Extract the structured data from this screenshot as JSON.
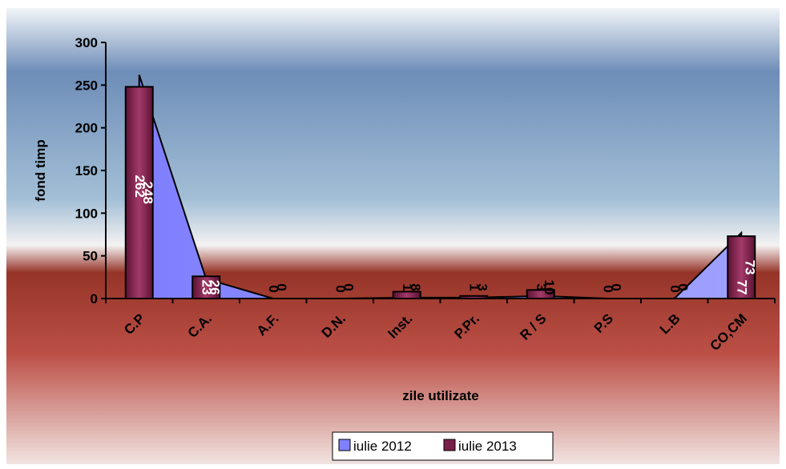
{
  "chart_data": {
    "type": "bar",
    "categories": [
      "C.P",
      "C.A.",
      "A.F.",
      "D.N.",
      "Inst.",
      "P.Pr.",
      "R / S",
      "P.S",
      "L.B",
      "CO,CM"
    ],
    "series": [
      {
        "name": "iulie 2012",
        "values": [
          262,
          23,
          0,
          0,
          1,
          1,
          3,
          0,
          0,
          77
        ],
        "color": "#8080ff"
      },
      {
        "name": "iulie 2013",
        "values": [
          248,
          26,
          0,
          0,
          8,
          3,
          10,
          0,
          0,
          73
        ],
        "color": "#7a1f4a"
      }
    ],
    "xlabel": "zile utilizate",
    "ylabel": "fond timp",
    "ylim": [
      0,
      300
    ],
    "yticks": [
      0,
      50,
      100,
      150,
      200,
      250,
      300
    ],
    "grid": false,
    "legend_position": "bottom"
  }
}
